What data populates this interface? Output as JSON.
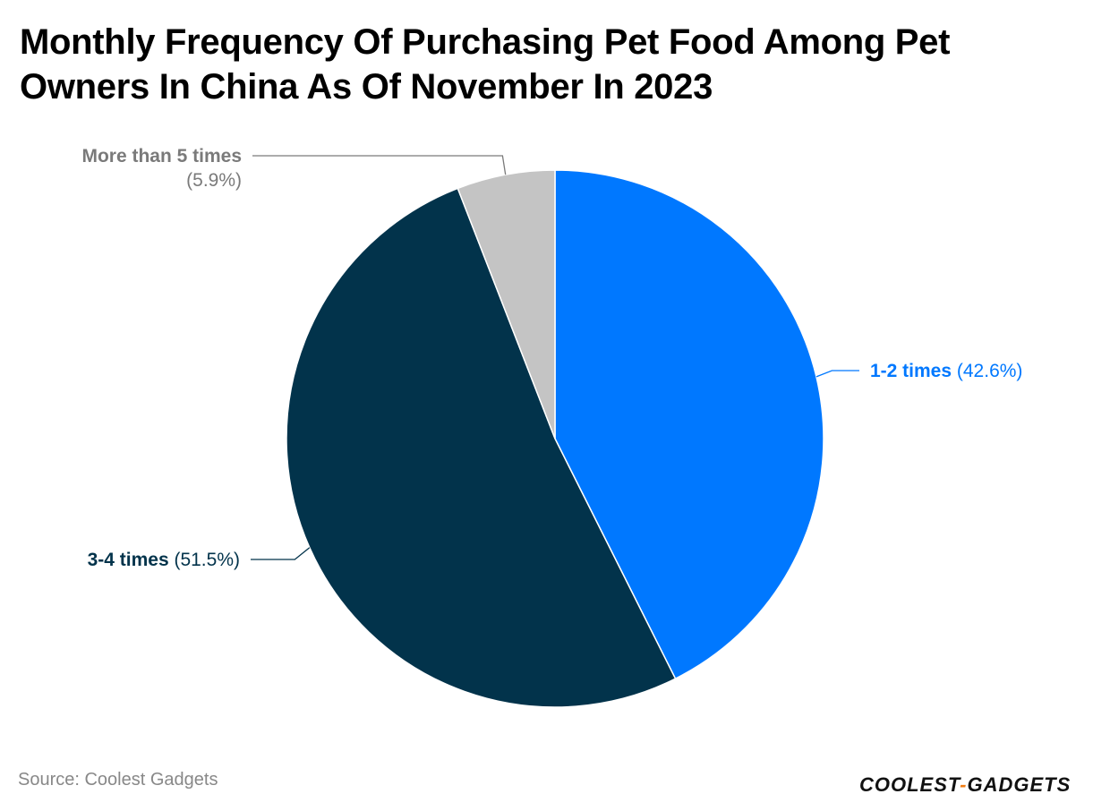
{
  "chart_data": {
    "type": "pie",
    "title": "Monthly Frequency Of Purchasing Pet Food Among Pet Owners In China As Of November In 2023",
    "start_angle_deg": 0,
    "direction": "clockwise",
    "slices": [
      {
        "label": "1-2 times",
        "value": 42.6,
        "value_label": "(42.6%)",
        "color": "#0078ff",
        "label_color": "#0078ff",
        "side": "right"
      },
      {
        "label": "3-4 times",
        "value": 51.5,
        "value_label": "(51.5%)",
        "color": "#02334b",
        "label_color": "#02334b",
        "side": "left"
      },
      {
        "label": "More than 5 times",
        "value": 5.9,
        "value_label": "(5.9%)",
        "color": "#c4c4c4",
        "label_color": "#7a7a7a",
        "side": "left"
      }
    ]
  },
  "footer": {
    "source": "Source: Coolest Gadgets",
    "logo_left": "COOLEST",
    "logo_dash": "-",
    "logo_right": "GADGETS"
  }
}
